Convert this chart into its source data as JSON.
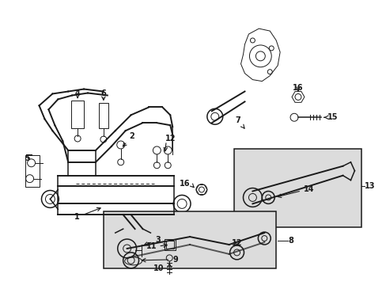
{
  "bg_color": "#ffffff",
  "lc": "#1a1a1a",
  "box_fill": "#dcdcdc",
  "lw_main": 1.1,
  "lw_thin": 0.7,
  "lw_thick": 1.4,
  "font_size": 7.0,
  "font_size_sm": 6.5,
  "figsize": [
    4.89,
    3.6
  ],
  "dpi": 100,
  "xlim": [
    0,
    489
  ],
  "ylim": [
    0,
    360
  ]
}
